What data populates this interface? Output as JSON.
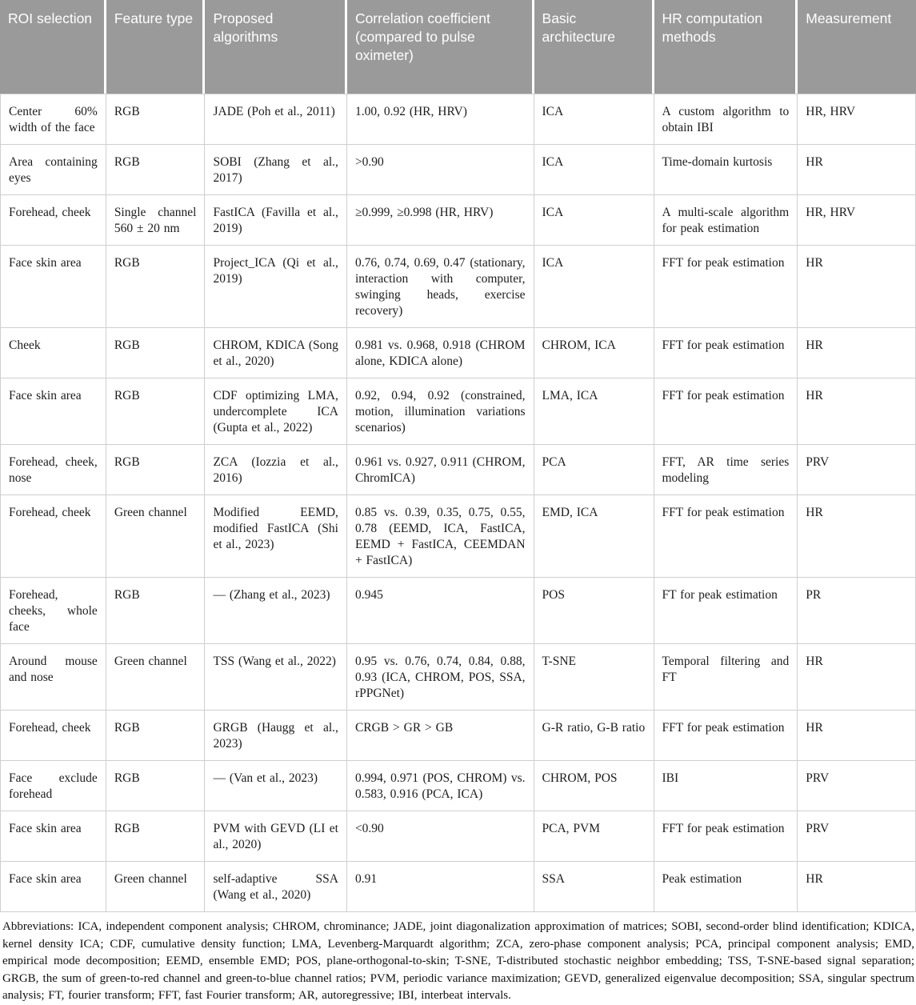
{
  "colors": {
    "header_bg": "#9a9a9a",
    "header_text": "#ffffff",
    "grid_border": "#cfcfcf",
    "body_text": "#1c1c1c"
  },
  "table": {
    "headers": [
      "ROI selection",
      "Feature type",
      "Proposed algorithms",
      "Correlation coefficient (compared to pulse oximeter)",
      "Basic architecture",
      "HR computation methods",
      "Measurement"
    ],
    "rows": [
      [
        "Center 60% width of the face",
        "RGB",
        "JADE (Poh et al., 2011)",
        "1.00, 0.92 (HR, HRV)",
        "ICA",
        "A custom algorithm to obtain IBI",
        "HR, HRV"
      ],
      [
        "Area containing eyes",
        "RGB",
        "SOBI (Zhang et al., 2017)",
        ">0.90",
        "ICA",
        "Time-domain kurtosis",
        "HR"
      ],
      [
        "Forehead, cheek",
        "Single channel 560 ± 20 nm",
        "FastICA (Favilla et al., 2019)",
        "≥0.999, ≥0.998 (HR, HRV)",
        "ICA",
        "A multi-scale algorithm for peak estimation",
        "HR, HRV"
      ],
      [
        "Face skin area",
        "RGB",
        "Project_ICA (Qi et al., 2019)",
        "0.76, 0.74, 0.69, 0.47 (stationary, interaction with computer, swinging heads, exercise recovery)",
        "ICA",
        "FFT for peak estimation",
        "HR"
      ],
      [
        "Cheek",
        "RGB",
        "CHROM, KDICA (Song et al., 2020)",
        "0.981 vs. 0.968, 0.918 (CHROM alone, KDICA alone)",
        "CHROM, ICA",
        "FFT for peak estimation",
        "HR"
      ],
      [
        "Face skin area",
        "RGB",
        "CDF optimizing LMA, undercomplete ICA (Gupta et al., 2022)",
        "0.92, 0.94, 0.92 (constrained, motion, illumination variations scenarios)",
        "LMA, ICA",
        "FFT for peak estimation",
        "HR"
      ],
      [
        "Forehead, cheek, nose",
        "RGB",
        "ZCA (Iozzia et al., 2016)",
        "0.961 vs. 0.927, 0.911 (CHROM, ChromICA)",
        "PCA",
        "FFT, AR time series modeling",
        "PRV"
      ],
      [
        "Forehead, cheek",
        "Green channel",
        "Modified EEMD, modified FastICA (Shi et al., 2023)",
        "0.85 vs. 0.39, 0.35, 0.75, 0.55, 0.78 (EEMD, ICA, FastICA, EEMD + FastICA, CEEMDAN + FastICA)",
        "EMD, ICA",
        "FFT for peak estimation",
        "HR"
      ],
      [
        "Forehead, cheeks, whole face",
        "RGB",
        "— (Zhang et al., 2023)",
        "0.945",
        "POS",
        "FT for peak estimation",
        "PR"
      ],
      [
        "Around mouse and nose",
        "Green channel",
        "TSS (Wang et al., 2022)",
        "0.95 vs. 0.76, 0.74, 0.84, 0.88, 0.93 (ICA, CHROM, POS, SSA, rPPGNet)",
        "T-SNE",
        "Temporal filtering and FT",
        "HR"
      ],
      [
        "Forehead, cheek",
        "RGB",
        "GRGB (Haugg et al., 2023)",
        "CRGB > GR > GB",
        "G-R ratio, G-B ratio",
        "FFT for peak estimation",
        "HR"
      ],
      [
        "Face exclude forehead",
        "RGB",
        "— (Van et al., 2023)",
        "0.994, 0.971 (POS, CHROM) vs. 0.583, 0.916 (PCA, ICA)",
        "CHROM, POS",
        "IBI",
        "PRV"
      ],
      [
        "Face skin area",
        "RGB",
        "PVM with GEVD (LI et al., 2020)",
        "<0.90",
        "PCA, PVM",
        "FFT for peak estimation",
        "PRV"
      ],
      [
        "Face skin area",
        "Green channel",
        "self-adaptive SSA (Wang et al., 2020)",
        "0.91",
        "SSA",
        "Peak estimation",
        "HR"
      ]
    ]
  },
  "footnote": "Abbreviations: ICA, independent component analysis; CHROM, chrominance; JADE, joint diagonalization approximation of matrices; SOBI, second-order blind identification; KDICA, kernel density ICA; CDF, cumulative density function; LMA, Levenberg-Marquardt algorithm; ZCA, zero-phase component analysis; PCA, principal component analysis; EMD, empirical mode decomposition; EEMD, ensemble EMD; POS, plane-orthogonal-to-skin; T-SNE, T-distributed stochastic neighbor embedding; TSS, T-SNE-based signal separation; GRGB, the sum of green-to-red channel and green-to-blue channel ratios; PVM, periodic variance maximization; GEVD, generalized eigenvalue decomposition; SSA, singular spectrum analysis; FT, fourier transform; FFT, fast Fourier transform; AR, autoregressive; IBI, interbeat intervals."
}
